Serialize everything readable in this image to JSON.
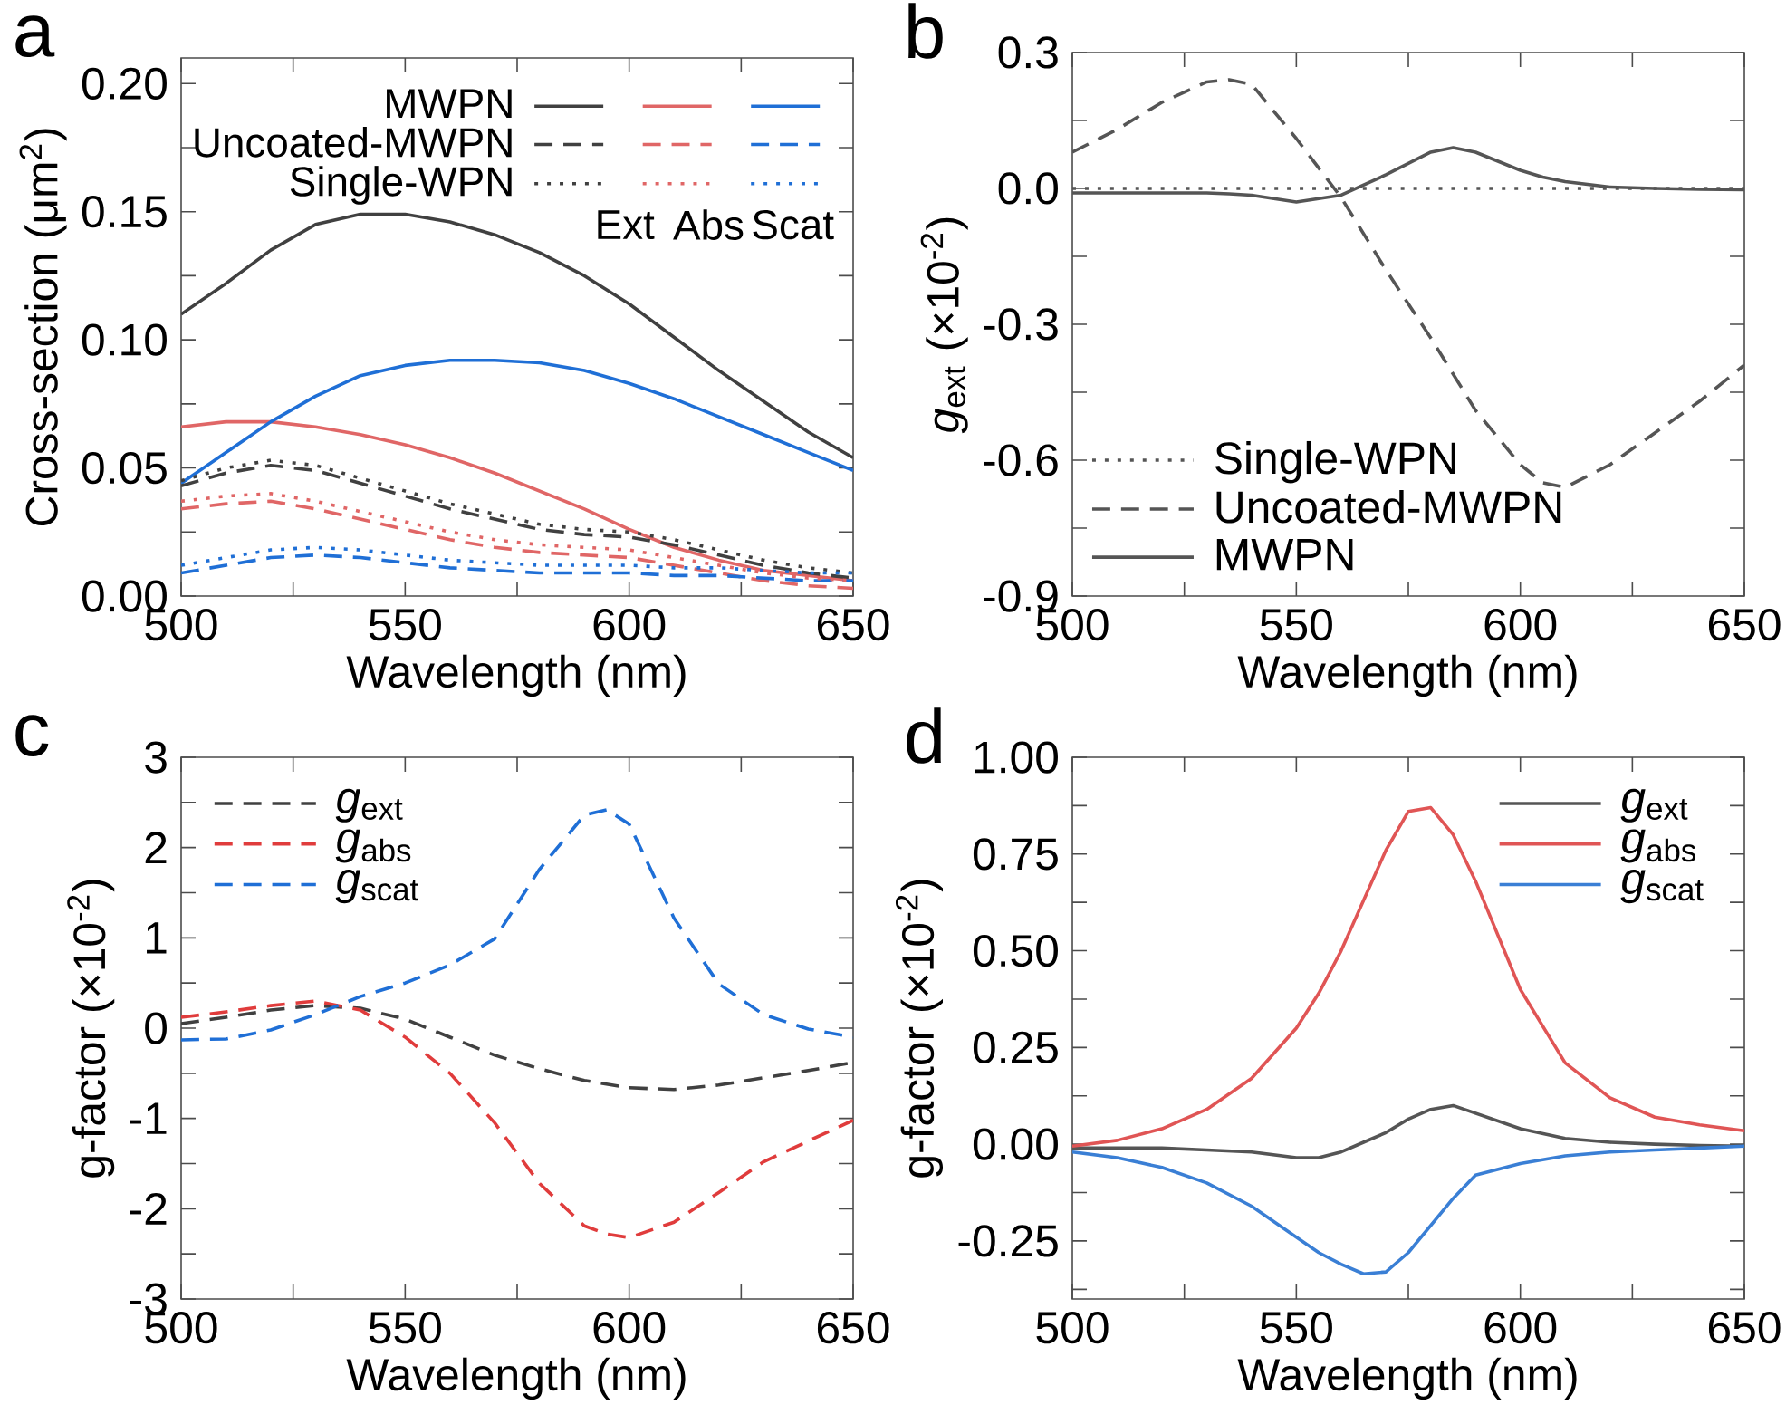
{
  "chart_data": [
    {
      "type": "line",
      "title": "a",
      "xlabel": "Wavelength (nm)",
      "ylabel": "Cross-section (μm$^{2}$)",
      "xlim": [
        500,
        650
      ],
      "ylim": [
        0,
        0.21
      ],
      "xticks": [
        500,
        {
          "value": 525,
          "label": null
        },
        550,
        {
          "value": 575,
          "label": null
        },
        600,
        {
          "value": 625,
          "label": null
        },
        650
      ],
      "yticks": [
        {
          "value": 0,
          "label": "0.00"
        },
        {
          "value": 0.025,
          "label": null
        },
        {
          "value": 0.05,
          "label": "0.05"
        },
        {
          "value": 0.075,
          "label": null
        },
        {
          "value": 0.1,
          "label": "0.10"
        },
        {
          "value": 0.125,
          "label": null
        },
        {
          "value": 0.15,
          "label": "0.15"
        },
        {
          "value": 0.175,
          "label": null
        },
        {
          "value": 0.2,
          "label": "0.20"
        }
      ],
      "x": [
        500,
        510,
        520,
        530,
        540,
        550,
        560,
        570,
        580,
        590,
        600,
        610,
        620,
        630,
        640,
        650
      ],
      "legend": "top right",
      "marker": "none",
      "annotations": [
        "Ext",
        "Abs",
        "Scat"
      ],
      "series": [
        {
          "name": "MWPN",
          "color": "#404040",
          "line_style": "solid",
          "values": [
            0.11,
            0.122,
            0.135,
            0.145,
            0.149,
            0.149,
            0.146,
            0.141,
            0.134,
            0.125,
            0.114,
            0.101,
            0.088,
            0.076,
            0.064,
            0.054
          ]
        },
        {
          "color": "#e06666",
          "line_style": "solid",
          "values": [
            0.066,
            0.068,
            0.068,
            0.066,
            0.063,
            0.059,
            0.054,
            0.048,
            0.041,
            0.034,
            0.026,
            0.019,
            0.014,
            0.01,
            0.008,
            0.006
          ]
        },
        {
          "color": "#1f6fd6",
          "line_style": "solid",
          "values": [
            0.044,
            0.056,
            0.068,
            0.078,
            0.086,
            0.09,
            0.092,
            0.092,
            0.091,
            0.088,
            0.083,
            0.077,
            0.07,
            0.063,
            0.056,
            0.049
          ]
        },
        {
          "name": "Uncoated-MWPN",
          "color": "#404040",
          "line_style": "dashed",
          "values": [
            0.043,
            0.048,
            0.051,
            0.049,
            0.044,
            0.039,
            0.034,
            0.03,
            0.026,
            0.024,
            0.023,
            0.02,
            0.016,
            0.012,
            0.009,
            0.007
          ]
        },
        {
          "color": "#e06666",
          "line_style": "dashed",
          "values": [
            0.034,
            0.036,
            0.037,
            0.034,
            0.03,
            0.026,
            0.022,
            0.019,
            0.017,
            0.016,
            0.015,
            0.012,
            0.009,
            0.006,
            0.004,
            0.003
          ]
        },
        {
          "color": "#1f6fd6",
          "line_style": "dashed",
          "values": [
            0.009,
            0.012,
            0.015,
            0.016,
            0.015,
            0.013,
            0.011,
            0.01,
            0.009,
            0.009,
            0.009,
            0.008,
            0.008,
            0.007,
            0.006,
            0.006
          ]
        },
        {
          "name": "Single-WPN",
          "color": "#404040",
          "line_style": "dotted",
          "values": [
            0.045,
            0.05,
            0.053,
            0.051,
            0.046,
            0.041,
            0.036,
            0.032,
            0.028,
            0.026,
            0.025,
            0.022,
            0.018,
            0.014,
            0.011,
            0.009
          ]
        },
        {
          "color": "#e06666",
          "line_style": "dotted",
          "values": [
            0.037,
            0.039,
            0.04,
            0.037,
            0.033,
            0.029,
            0.025,
            0.022,
            0.02,
            0.019,
            0.018,
            0.015,
            0.012,
            0.009,
            0.007,
            0.006
          ]
        },
        {
          "color": "#1f6fd6",
          "line_style": "dotted",
          "values": [
            0.012,
            0.015,
            0.018,
            0.019,
            0.018,
            0.016,
            0.014,
            0.013,
            0.012,
            0.012,
            0.012,
            0.011,
            0.011,
            0.01,
            0.009,
            0.009
          ]
        }
      ]
    },
    {
      "type": "line",
      "title": "b",
      "xlabel": "Wavelength (nm)",
      "ylabel": "*g*$_{ext}$ (×10$^{-2}$)",
      "xlim": [
        500,
        650
      ],
      "ylim": [
        -0.9,
        0.3
      ],
      "xticks": [
        500,
        {
          "value": 525,
          "label": null
        },
        550,
        {
          "value": 575,
          "label": null
        },
        600,
        {
          "value": 625,
          "label": null
        },
        650
      ],
      "yticks": [
        {
          "value": -0.9,
          "label": "-0.9"
        },
        {
          "value": -0.75,
          "label": null
        },
        {
          "value": -0.6,
          "label": "-0.6"
        },
        {
          "value": -0.45,
          "label": null
        },
        {
          "value": -0.3,
          "label": "-0.3"
        },
        {
          "value": -0.15,
          "label": null
        },
        {
          "value": 0,
          "label": "0.0"
        },
        {
          "value": 0.15,
          "label": null
        },
        {
          "value": 0.3,
          "label": "0.3"
        }
      ],
      "x": [
        500,
        510,
        520,
        530,
        535,
        540,
        550,
        560,
        570,
        580,
        585,
        590,
        600,
        605,
        610,
        620,
        630,
        640,
        650
      ],
      "legend": "bottom left",
      "marker": "none",
      "series": [
        {
          "name": "Single-WPN",
          "color": "#555555",
          "line_style": "dotted",
          "values": [
            0,
            0,
            0,
            0,
            0,
            0,
            0,
            0,
            0,
            0,
            0,
            0,
            0,
            0,
            0,
            0,
            0,
            0,
            0
          ]
        },
        {
          "name": "Uncoated-MWPN",
          "color": "#555555",
          "line_style": "dashed",
          "values": [
            0.08,
            0.13,
            0.19,
            0.235,
            0.24,
            0.23,
            0.11,
            -0.02,
            -0.18,
            -0.33,
            -0.41,
            -0.49,
            -0.61,
            -0.65,
            -0.66,
            -0.61,
            -0.54,
            -0.47,
            -0.39
          ]
        },
        {
          "name": "MWPN",
          "color": "#555555",
          "line_style": "solid",
          "values": [
            -0.01,
            -0.01,
            -0.01,
            -0.01,
            -0.012,
            -0.015,
            -0.03,
            -0.015,
            0.03,
            0.08,
            0.09,
            0.08,
            0.04,
            0.025,
            0.015,
            0.003,
            0,
            -0.002,
            -0.003
          ]
        }
      ]
    },
    {
      "type": "line",
      "title": "c",
      "xlabel": "Wavelength (nm)",
      "ylabel": "g-factor (×10$^{-2}$)",
      "xlim": [
        500,
        650
      ],
      "ylim": [
        -3,
        3
      ],
      "xticks": [
        500,
        {
          "value": 525,
          "label": null
        },
        550,
        {
          "value": 575,
          "label": null
        },
        600,
        {
          "value": 625,
          "label": null
        },
        650
      ],
      "yticks": [
        -3,
        {
          "value": -2.5,
          "label": null
        },
        -2,
        {
          "value": -1.5,
          "label": null
        },
        -1,
        {
          "value": -0.5,
          "label": null
        },
        0,
        {
          "value": 0.5,
          "label": null
        },
        1,
        {
          "value": 1.5,
          "label": null
        },
        2,
        {
          "value": 2.5,
          "label": null
        },
        3
      ],
      "x": [
        500,
        510,
        520,
        530,
        540,
        550,
        560,
        570,
        580,
        590,
        595,
        600,
        610,
        620,
        630,
        640,
        650
      ],
      "legend": "top left",
      "marker": "none",
      "series": [
        {
          "name": "*g*$_{ext}$",
          "color": "#404040",
          "line_style": "dashed",
          "values": [
            0.05,
            0.12,
            0.2,
            0.25,
            0.22,
            0.1,
            -0.1,
            -0.3,
            -0.45,
            -0.58,
            -0.62,
            -0.66,
            -0.68,
            -0.63,
            -0.55,
            -0.47,
            -0.38
          ]
        },
        {
          "name": "*g*$_{abs}$",
          "color": "#e03c3c",
          "line_style": "dashed",
          "values": [
            0.12,
            0.18,
            0.25,
            0.3,
            0.2,
            -0.1,
            -0.5,
            -1.05,
            -1.72,
            -2.19,
            -2.28,
            -2.32,
            -2.15,
            -1.82,
            -1.48,
            -1.25,
            -1.02
          ]
        },
        {
          "name": "*g*$_{scat}$",
          "color": "#1f6fd6",
          "line_style": "dashed",
          "values": [
            -0.13,
            -0.12,
            -0.02,
            0.15,
            0.35,
            0.5,
            0.7,
            0.99,
            1.76,
            2.36,
            2.42,
            2.26,
            1.22,
            0.49,
            0.15,
            -0.01,
            -0.1
          ]
        }
      ]
    },
    {
      "type": "line",
      "title": "d",
      "xlabel": "Wavelength (nm)",
      "ylabel": "g-factor (×10$^{-2}$)",
      "xlim": [
        500,
        650
      ],
      "ylim": [
        -0.4,
        1.0
      ],
      "xticks": [
        500,
        {
          "value": 525,
          "label": null
        },
        550,
        {
          "value": 575,
          "label": null
        },
        600,
        {
          "value": 625,
          "label": null
        },
        650
      ],
      "yticks": [
        {
          "value": -0.375,
          "label": null
        },
        {
          "value": -0.25,
          "label": "-0.25"
        },
        {
          "value": -0.125,
          "label": null
        },
        {
          "value": 0,
          "label": "0.00"
        },
        {
          "value": 0.125,
          "label": null
        },
        {
          "value": 0.25,
          "label": "0.25"
        },
        {
          "value": 0.375,
          "label": null
        },
        {
          "value": 0.5,
          "label": "0.50"
        },
        {
          "value": 0.625,
          "label": null
        },
        {
          "value": 0.75,
          "label": "0.75"
        },
        {
          "value": 0.875,
          "label": null
        },
        {
          "value": 1.0,
          "label": "1.00"
        }
      ],
      "x": [
        500,
        510,
        520,
        530,
        540,
        550,
        555,
        560,
        565,
        570,
        575,
        580,
        585,
        590,
        600,
        610,
        620,
        630,
        640,
        650
      ],
      "legend": "top right",
      "marker": "none",
      "series": [
        {
          "name": "*g*$_{ext}$",
          "color": "#555555",
          "line_style": "solid",
          "values": [
            -0.01,
            -0.01,
            -0.01,
            -0.015,
            -0.02,
            -0.035,
            -0.035,
            -0.02,
            0.005,
            0.03,
            0.065,
            0.09,
            0.1,
            0.08,
            0.04,
            0.015,
            0.005,
            0,
            -0.003,
            -0.005
          ]
        },
        {
          "name": "*g*$_{abs}$",
          "color": "#e05555",
          "line_style": "solid",
          "values": [
            -0.005,
            0.01,
            0.04,
            0.09,
            0.17,
            0.3,
            0.39,
            0.5,
            0.63,
            0.76,
            0.86,
            0.87,
            0.8,
            0.68,
            0.4,
            0.21,
            0.12,
            0.07,
            0.05,
            0.035
          ]
        },
        {
          "name": "*g*$_{scat}$",
          "color": "#3a7fd5",
          "line_style": "solid",
          "values": [
            -0.02,
            -0.035,
            -0.06,
            -0.1,
            -0.16,
            -0.24,
            -0.28,
            -0.31,
            -0.335,
            -0.33,
            -0.28,
            -0.21,
            -0.14,
            -0.08,
            -0.05,
            -0.03,
            -0.02,
            -0.015,
            -0.01,
            -0.005
          ]
        }
      ]
    }
  ]
}
